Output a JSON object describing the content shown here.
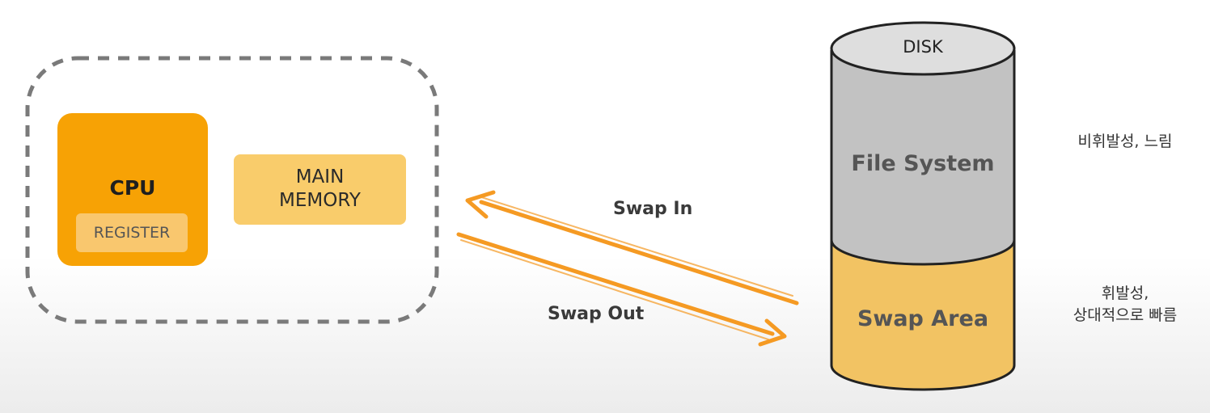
{
  "system": {
    "cpu_label": "CPU",
    "register_label": "REGISTER",
    "memory_label_line1": "MAIN",
    "memory_label_line2": "MEMORY"
  },
  "arrows": {
    "swap_in_label": "Swap In",
    "swap_out_label": "Swap Out"
  },
  "disk": {
    "title": "DISK",
    "file_system_label": "File System",
    "swap_area_label": "Swap Area"
  },
  "notes": {
    "file_system_note": "비휘발성, 느림",
    "swap_area_note_line1": "휘발성,",
    "swap_area_note_line2": "상대적으로 빠름"
  },
  "colors": {
    "cpu": "#f7a205",
    "register": "#f9c76e",
    "memory": "#f9cc6b",
    "arrow": "#f59a23",
    "file_system": "#c2c2c2",
    "swap_area": "#f2c363",
    "disk_top": "#dedede"
  }
}
